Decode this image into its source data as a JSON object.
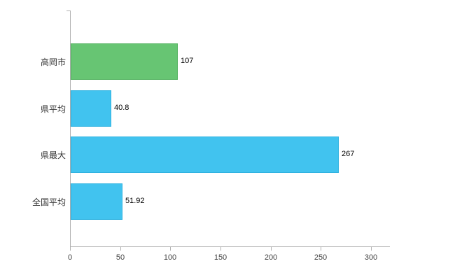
{
  "chart_data": {
    "type": "bar",
    "orientation": "horizontal",
    "title": "",
    "xlabel": "",
    "ylabel": "",
    "categories": [
      "高岡市",
      "県平均",
      "県最大",
      "全国平均"
    ],
    "values": [
      107,
      40.8,
      267,
      51.92
    ],
    "value_labels": [
      "107",
      "40.8",
      "267",
      "51.92"
    ],
    "series": [
      {
        "name": "value",
        "values": [
          107,
          40.8,
          267,
          51.92
        ]
      }
    ],
    "bar_colors": [
      "#67c573",
      "#41c3ef",
      "#41c3ef",
      "#41c3ef"
    ],
    "bar_border_colors": [
      "#55b262",
      "#30b2e0",
      "#30b2e0",
      "#30b2e0"
    ],
    "x_ticks": [
      0,
      50,
      100,
      150,
      200,
      250,
      300
    ],
    "x_tick_labels": [
      "0",
      "50",
      "100",
      "150",
      "200",
      "250",
      "300"
    ],
    "xlim": [
      0,
      318
    ],
    "grid": false,
    "legend": "none",
    "axis_color": "#b0b0b0",
    "tick_label_color": "#444444",
    "category_label_color": "#333333",
    "value_label_color": "#000000",
    "background_color": "#ffffff"
  }
}
